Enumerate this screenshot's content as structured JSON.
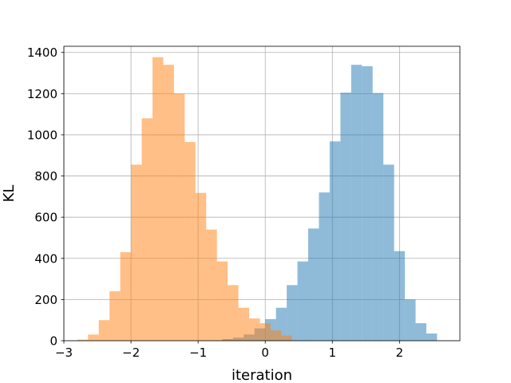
{
  "chart_data": {
    "type": "bar",
    "chart_subtype": "overlapping-histogram",
    "title": "",
    "xlabel": "iteration",
    "ylabel": "KL",
    "xlim": [
      -3.0,
      2.9
    ],
    "ylim": [
      0,
      1430
    ],
    "xticks": [
      -3,
      -2,
      -1,
      0,
      1,
      2
    ],
    "xtick_labels": [
      "−3",
      "−2",
      "−1",
      "0",
      "1",
      "2"
    ],
    "yticks": [
      0,
      200,
      400,
      600,
      800,
      1000,
      1200,
      1400
    ],
    "ytick_labels": [
      "0",
      "200",
      "400",
      "600",
      "800",
      "1000",
      "1200",
      "1400"
    ],
    "grid": true,
    "legend": "none",
    "series": [
      {
        "color": "#1f77b4",
        "opacity": 0.5,
        "bin_edges": [
          -0.8,
          -0.64,
          -0.48,
          -0.32,
          -0.16,
          0.0,
          0.16,
          0.32,
          0.48,
          0.64,
          0.8,
          0.96,
          1.12,
          1.28,
          1.44,
          1.6,
          1.76,
          1.92,
          2.08,
          2.24,
          2.4,
          2.56
        ],
        "counts": [
          2,
          8,
          15,
          30,
          60,
          105,
          160,
          270,
          385,
          545,
          720,
          968,
          1205,
          1340,
          1333,
          1203,
          855,
          435,
          200,
          85,
          35
        ]
      },
      {
        "color": "#ff7f0e",
        "opacity": 0.5,
        "bin_edges": [
          -2.8,
          -2.64,
          -2.48,
          -2.32,
          -2.16,
          -2.0,
          -1.84,
          -1.68,
          -1.52,
          -1.36,
          -1.2,
          -1.04,
          -0.88,
          -0.72,
          -0.56,
          -0.4,
          -0.24,
          -0.08,
          0.08,
          0.24,
          0.4
        ],
        "counts": [
          5,
          30,
          100,
          240,
          430,
          855,
          1080,
          1377,
          1340,
          1200,
          965,
          718,
          540,
          385,
          270,
          160,
          108,
          85,
          50,
          25
        ]
      }
    ]
  }
}
